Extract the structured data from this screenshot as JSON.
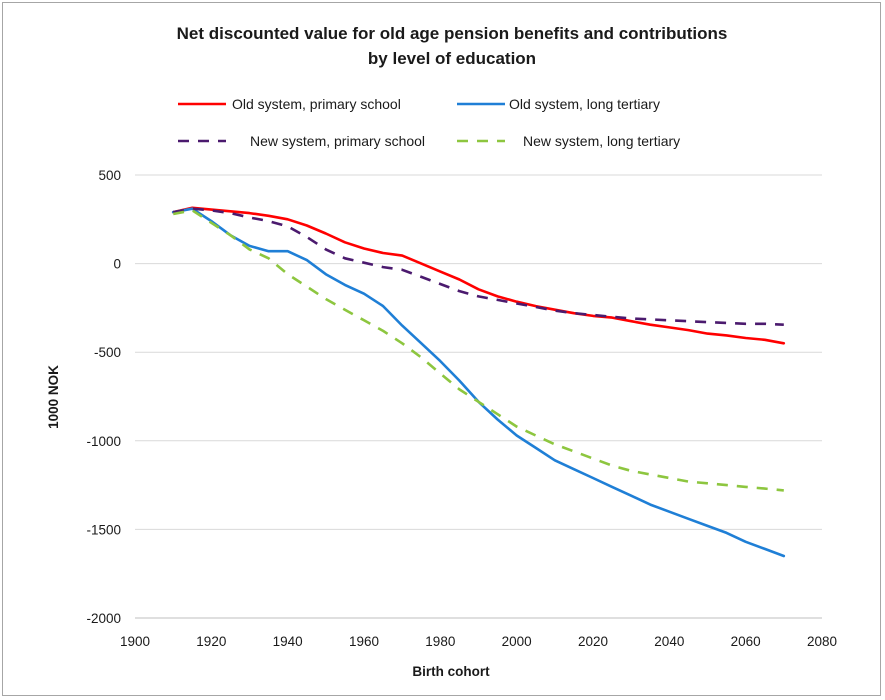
{
  "chart_data": {
    "type": "line",
    "title": [
      "Net discounted value for old age pension benefits and contributions",
      "by level of education"
    ],
    "xlabel": "Birth cohort",
    "ylabel": "1000 NOK",
    "xlim": [
      1900,
      2080
    ],
    "ylim": [
      -2000,
      500
    ],
    "x_ticks": [
      1900,
      1920,
      1940,
      1960,
      1980,
      2000,
      2020,
      2040,
      2060,
      2080
    ],
    "y_ticks": [
      500,
      0,
      -500,
      -1000,
      -1500,
      -2000
    ],
    "grid": "horizontal",
    "legend_position": "top",
    "series": [
      {
        "name": "Old system, primary school",
        "color": "#ff0000",
        "dash": "solid",
        "x": [
          1910,
          1915,
          1920,
          1925,
          1930,
          1935,
          1940,
          1945,
          1950,
          1955,
          1960,
          1965,
          1970,
          1975,
          1980,
          1985,
          1990,
          1995,
          2000,
          2005,
          2010,
          2015,
          2020,
          2025,
          2030,
          2035,
          2040,
          2045,
          2050,
          2055,
          2060,
          2065,
          2070
        ],
        "y": [
          290,
          315,
          305,
          295,
          285,
          270,
          250,
          215,
          170,
          120,
          85,
          60,
          45,
          0,
          -45,
          -90,
          -145,
          -185,
          -215,
          -240,
          -260,
          -280,
          -295,
          -305,
          -325,
          -345,
          -360,
          -375,
          -395,
          -405,
          -420,
          -430,
          -450
        ]
      },
      {
        "name": "Old system, long tertiary",
        "color": "#1f7fd6",
        "dash": "solid",
        "x": [
          1910,
          1915,
          1920,
          1925,
          1930,
          1935,
          1940,
          1945,
          1950,
          1955,
          1960,
          1965,
          1970,
          1975,
          1980,
          1985,
          1990,
          1995,
          2000,
          2005,
          2010,
          2015,
          2020,
          2025,
          2030,
          2035,
          2040,
          2045,
          2050,
          2055,
          2060,
          2065,
          2070
        ],
        "y": [
          290,
          310,
          240,
          160,
          100,
          70,
          70,
          20,
          -60,
          -120,
          -170,
          -240,
          -350,
          -450,
          -550,
          -660,
          -780,
          -880,
          -970,
          -1040,
          -1110,
          -1160,
          -1210,
          -1260,
          -1310,
          -1360,
          -1400,
          -1440,
          -1480,
          -1520,
          -1570,
          -1610,
          -1650
        ]
      },
      {
        "name": "New system, primary school",
        "color": "#4b1a6e",
        "dash": "dashed",
        "x": [
          1910,
          1915,
          1920,
          1925,
          1930,
          1935,
          1940,
          1945,
          1950,
          1955,
          1960,
          1965,
          1970,
          1975,
          1980,
          1985,
          1990,
          1995,
          2000,
          2005,
          2010,
          2015,
          2020,
          2025,
          2030,
          2035,
          2040,
          2045,
          2050,
          2055,
          2060,
          2065,
          2070
        ],
        "y": [
          290,
          310,
          300,
          285,
          260,
          240,
          210,
          150,
          80,
          30,
          5,
          -20,
          -35,
          -75,
          -115,
          -155,
          -185,
          -205,
          -225,
          -245,
          -265,
          -280,
          -290,
          -300,
          -310,
          -315,
          -320,
          -325,
          -330,
          -335,
          -340,
          -340,
          -345
        ]
      },
      {
        "name": "New system, long tertiary",
        "color": "#8dc63f",
        "dash": "dashed",
        "x": [
          1910,
          1915,
          1920,
          1925,
          1930,
          1935,
          1940,
          1945,
          1950,
          1955,
          1960,
          1965,
          1970,
          1975,
          1980,
          1985,
          1990,
          1995,
          2000,
          2005,
          2010,
          2015,
          2020,
          2025,
          2030,
          2035,
          2040,
          2045,
          2050,
          2055,
          2060,
          2065,
          2070
        ],
        "y": [
          280,
          300,
          230,
          160,
          80,
          30,
          -60,
          -130,
          -200,
          -260,
          -320,
          -380,
          -450,
          -530,
          -620,
          -710,
          -780,
          -850,
          -920,
          -970,
          -1020,
          -1060,
          -1100,
          -1140,
          -1170,
          -1190,
          -1210,
          -1230,
          -1240,
          -1250,
          -1260,
          -1270,
          -1280
        ]
      }
    ]
  }
}
